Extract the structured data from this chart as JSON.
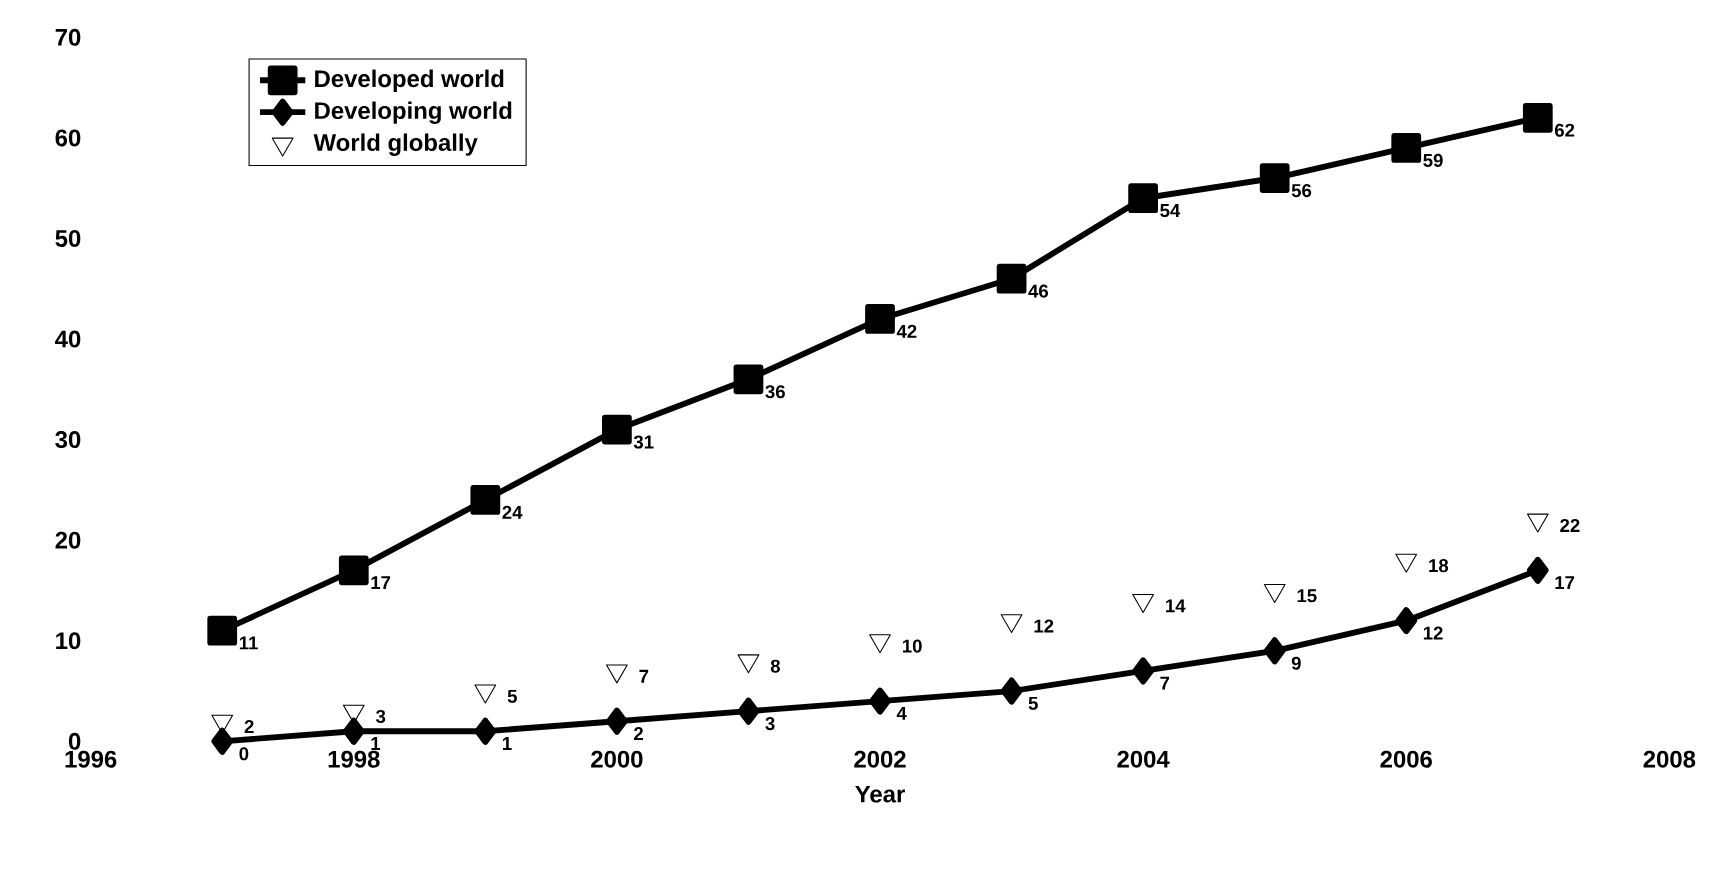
{
  "chart_data": {
    "type": "line",
    "xlabel": "Year",
    "x": [
      1997,
      1998,
      1999,
      2000,
      2001,
      2002,
      2003,
      2004,
      2005,
      2006,
      2007
    ],
    "xlim": [
      1996,
      2008
    ],
    "xticks": [
      1996,
      1998,
      2000,
      2002,
      2004,
      2006,
      2008
    ],
    "ylim": [
      0,
      70
    ],
    "yticks": [
      0,
      10,
      20,
      30,
      40,
      50,
      60,
      70
    ],
    "legend": "top left",
    "data_labels": true,
    "grid": false,
    "series": [
      {
        "name": "Developed world",
        "color": "#000000",
        "marker": "square",
        "values": [
          11,
          17,
          24,
          31,
          36,
          42,
          46,
          54,
          56,
          59,
          62
        ]
      },
      {
        "name": "Developing world",
        "color": "#000000",
        "marker": "diamond",
        "values": [
          0,
          1,
          1,
          2,
          3,
          4,
          5,
          7,
          9,
          12,
          17
        ]
      },
      {
        "name": "World globally",
        "type": "scatter",
        "color": "#000000",
        "marker": "triangle",
        "values": [
          2,
          3,
          5,
          7,
          8,
          10,
          12,
          14,
          15,
          18,
          22
        ]
      }
    ]
  }
}
